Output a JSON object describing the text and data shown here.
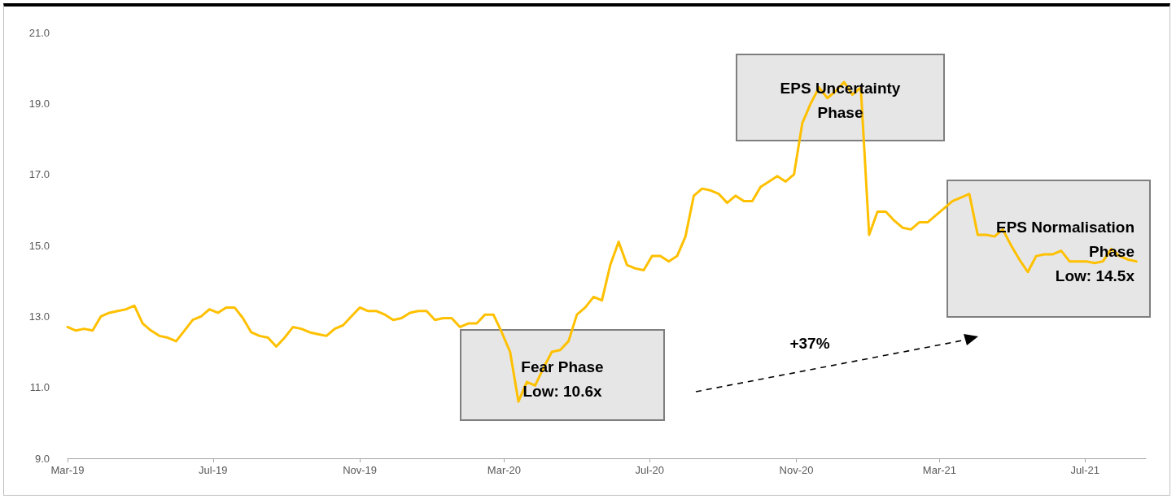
{
  "chart_data": {
    "type": "line",
    "x": [
      "2019-03-01",
      "2019-03-08",
      "2019-03-15",
      "2019-03-22",
      "2019-03-29",
      "2019-04-05",
      "2019-04-12",
      "2019-04-19",
      "2019-04-26",
      "2019-05-03",
      "2019-05-10",
      "2019-05-17",
      "2019-05-24",
      "2019-05-31",
      "2019-06-07",
      "2019-06-14",
      "2019-06-21",
      "2019-06-28",
      "2019-07-05",
      "2019-07-12",
      "2019-07-19",
      "2019-07-26",
      "2019-08-02",
      "2019-08-09",
      "2019-08-16",
      "2019-08-23",
      "2019-08-30",
      "2019-09-06",
      "2019-09-13",
      "2019-09-20",
      "2019-09-27",
      "2019-10-04",
      "2019-10-11",
      "2019-10-18",
      "2019-10-25",
      "2019-11-01",
      "2019-11-08",
      "2019-11-15",
      "2019-11-22",
      "2019-11-29",
      "2019-12-06",
      "2019-12-13",
      "2019-12-20",
      "2019-12-27",
      "2020-01-03",
      "2020-01-10",
      "2020-01-17",
      "2020-01-24",
      "2020-01-31",
      "2020-02-07",
      "2020-02-14",
      "2020-02-21",
      "2020-02-28",
      "2020-03-06",
      "2020-03-13",
      "2020-03-20",
      "2020-03-27",
      "2020-04-03",
      "2020-04-10",
      "2020-04-17",
      "2020-04-24",
      "2020-05-01",
      "2020-05-08",
      "2020-05-15",
      "2020-05-22",
      "2020-05-29",
      "2020-06-05",
      "2020-06-12",
      "2020-06-19",
      "2020-06-26",
      "2020-07-03",
      "2020-07-10",
      "2020-07-17",
      "2020-07-24",
      "2020-07-31",
      "2020-08-07",
      "2020-08-14",
      "2020-08-21",
      "2020-08-28",
      "2020-09-04",
      "2020-09-11",
      "2020-09-18",
      "2020-09-25",
      "2020-10-02",
      "2020-10-09",
      "2020-10-16",
      "2020-10-23",
      "2020-10-30",
      "2020-11-06",
      "2020-11-13",
      "2020-11-20",
      "2020-11-27",
      "2020-12-04",
      "2020-12-11",
      "2020-12-18",
      "2020-12-25",
      "2021-01-01",
      "2021-01-08",
      "2021-01-15",
      "2021-01-22",
      "2021-01-29",
      "2021-02-05",
      "2021-02-12",
      "2021-02-19",
      "2021-02-26",
      "2021-03-05",
      "2021-03-12",
      "2021-03-19",
      "2021-03-26",
      "2021-04-02",
      "2021-04-09",
      "2021-04-16",
      "2021-04-23",
      "2021-04-30",
      "2021-05-07",
      "2021-05-14",
      "2021-05-21",
      "2021-05-28",
      "2021-06-04",
      "2021-06-11",
      "2021-06-18",
      "2021-06-25",
      "2021-07-02",
      "2021-07-09",
      "2021-07-16",
      "2021-07-23",
      "2021-07-30",
      "2021-08-06",
      "2021-08-13"
    ],
    "values": [
      12.7,
      12.6,
      12.65,
      12.6,
      13.0,
      13.1,
      13.15,
      13.2,
      13.3,
      12.8,
      12.6,
      12.45,
      12.4,
      12.3,
      12.6,
      12.9,
      13.0,
      13.2,
      13.1,
      13.25,
      13.25,
      12.95,
      12.55,
      12.45,
      12.4,
      12.15,
      12.4,
      12.7,
      12.65,
      12.55,
      12.5,
      12.45,
      12.65,
      12.75,
      13.0,
      13.25,
      13.15,
      13.15,
      13.05,
      12.9,
      12.95,
      13.1,
      13.15,
      13.15,
      12.9,
      12.95,
      12.95,
      12.7,
      12.8,
      12.8,
      13.05,
      13.05,
      12.55,
      12.0,
      10.6,
      11.15,
      11.05,
      11.55,
      12.0,
      12.05,
      12.3,
      13.05,
      13.25,
      13.55,
      13.45,
      14.45,
      15.1,
      14.45,
      14.35,
      14.3,
      14.7,
      14.7,
      14.55,
      14.7,
      15.25,
      16.4,
      16.6,
      16.55,
      16.45,
      16.2,
      16.4,
      16.25,
      16.25,
      16.65,
      16.8,
      16.95,
      16.8,
      17.0,
      18.45,
      19.0,
      19.45,
      19.15,
      19.35,
      19.6,
      19.25,
      19.45,
      15.3,
      15.95,
      15.95,
      15.7,
      15.5,
      15.45,
      15.65,
      15.65,
      15.85,
      16.05,
      16.25,
      16.35,
      16.45,
      15.3,
      15.3,
      15.25,
      15.45,
      15.0,
      14.6,
      14.25,
      14.7,
      14.75,
      14.75,
      14.85,
      14.55,
      14.55,
      14.55,
      14.5,
      14.55,
      14.9,
      14.7,
      14.6,
      14.55
    ],
    "color": "#ffc000",
    "marker": "none",
    "line_style": "solid",
    "grid": false,
    "xlim": [
      "2019-03-01",
      "2021-08-21"
    ],
    "xticks": [
      {
        "value": "2019-03-01",
        "label": "Mar-19"
      },
      {
        "value": "2019-07-01",
        "label": "Jul-19"
      },
      {
        "value": "2019-11-01",
        "label": "Nov-19"
      },
      {
        "value": "2020-03-01",
        "label": "Mar-20"
      },
      {
        "value": "2020-07-01",
        "label": "Jul-20"
      },
      {
        "value": "2020-11-01",
        "label": "Nov-20"
      },
      {
        "value": "2021-03-01",
        "label": "Mar-21"
      },
      {
        "value": "2021-07-01",
        "label": "Jul-21"
      }
    ],
    "ylim": [
      9,
      21
    ],
    "yticks": [
      {
        "value": 9,
        "label": "9.0"
      },
      {
        "value": 11,
        "label": "11.0"
      },
      {
        "value": 13,
        "label": "13.0"
      },
      {
        "value": 15,
        "label": "15.0"
      },
      {
        "value": 17,
        "label": "17.0"
      },
      {
        "value": 19,
        "label": "19.0"
      },
      {
        "value": 21,
        "label": "21.0"
      }
    ],
    "annotations": [
      "Fear Phase\nLow: 10.6x",
      "EPS Uncertainty Phase",
      "EPS Normalisation Phase\nLow: 14.5x",
      "+37%"
    ]
  }
}
